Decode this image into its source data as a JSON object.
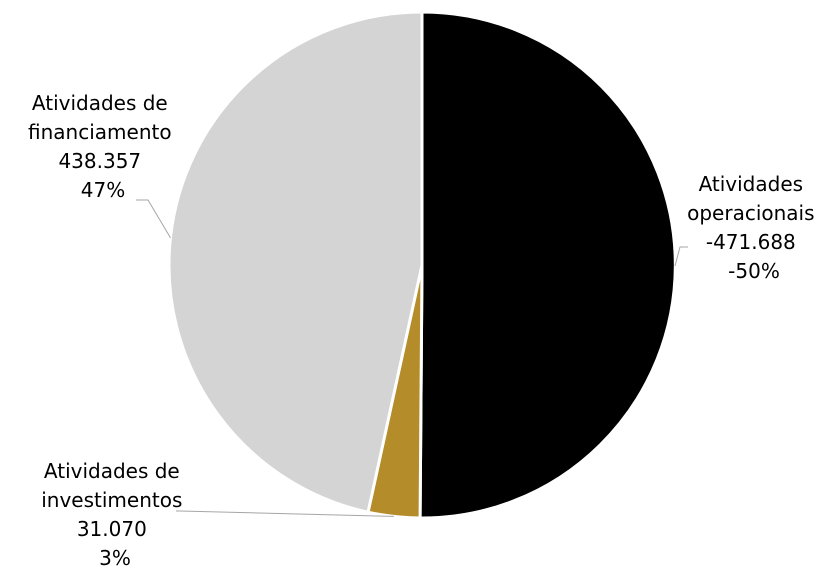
{
  "chart_data": {
    "type": "pie",
    "title": "",
    "slices": [
      {
        "label_lines": [
          "Atividades",
          "operacionais"
        ],
        "value": -471688,
        "value_text": "-471.688",
        "percent": 50,
        "percent_text": "-50%",
        "color": "#000000"
      },
      {
        "label_lines": [
          "Atividades de",
          "investimentos"
        ],
        "value": 31070,
        "value_text": "31.070",
        "percent": 3,
        "percent_text": "3%",
        "color": "#b58c2a"
      },
      {
        "label_lines": [
          "Atividades de",
          "financiamento"
        ],
        "value": 438357,
        "value_text": "438.357",
        "percent": 47,
        "percent_text": "47%",
        "color": "#d4d4d4"
      }
    ],
    "start_angle_deg": 0,
    "direction": "clockwise",
    "legend": "none",
    "data_labels": "outside-with-leader-lines"
  }
}
